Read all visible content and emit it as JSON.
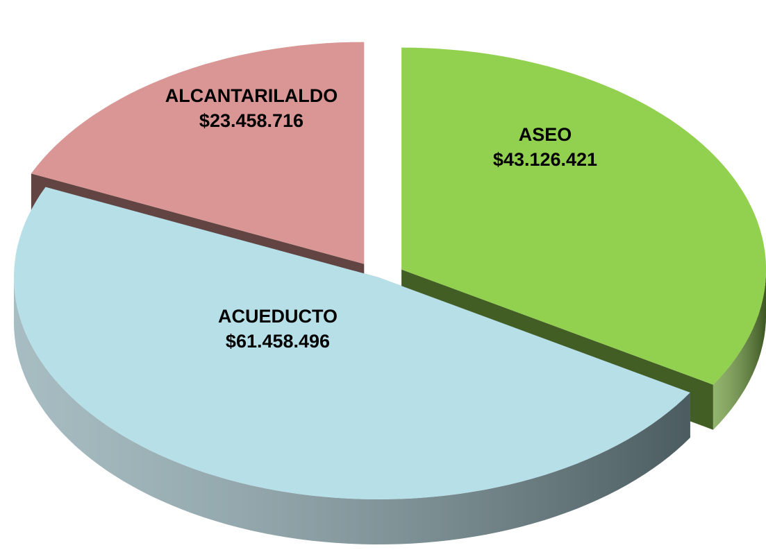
{
  "chart_data": {
    "type": "pie",
    "categories": [
      "ASEO",
      "ACUEDUCTO",
      "ALCANTARILALDO"
    ],
    "values": [
      43126421,
      61458496,
      23458716
    ],
    "value_labels": [
      "$43.126.421",
      "$61.458.496",
      "$23.458.716"
    ],
    "colors": [
      "#92d050",
      "#b7dfe8",
      "#d99694"
    ],
    "start_angle": -90
  }
}
